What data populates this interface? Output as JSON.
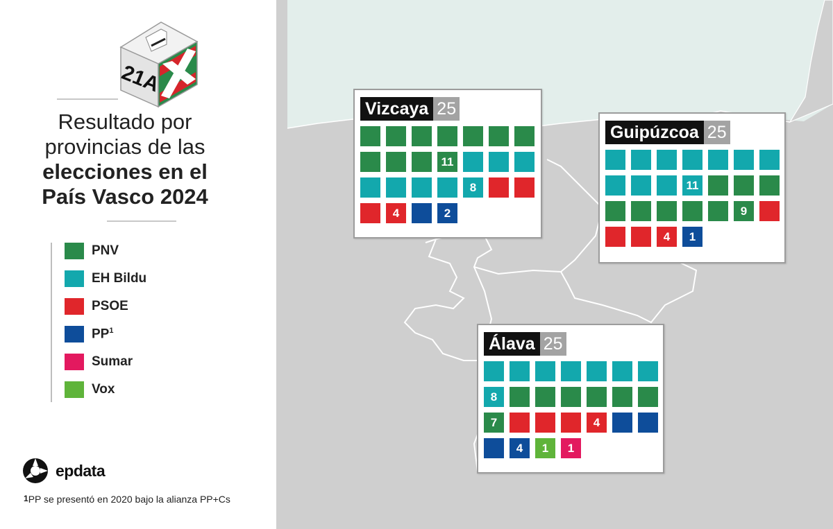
{
  "logo": {
    "text": "21A"
  },
  "title": {
    "light_lines": [
      "Resultado por",
      "provincias de las"
    ],
    "bold_lines": [
      "elecciones en el",
      "País Vasco 2024"
    ]
  },
  "colors": {
    "PNV": "#2a8a4a",
    "EH Bildu": "#13a8ad",
    "PSOE": "#e0262b",
    "PP": "#0e4d9a",
    "Sumar": "#e3195f",
    "Vox": "#5fb43a",
    "sea": "#e3eeeb",
    "land": "#cfcfcf"
  },
  "legend": [
    {
      "party": "PNV",
      "label": "PNV"
    },
    {
      "party": "EH Bildu",
      "label": "EH Bildu"
    },
    {
      "party": "PSOE",
      "label": "PSOE"
    },
    {
      "party": "PP",
      "label": "PP",
      "sup": "1"
    },
    {
      "party": "Sumar",
      "label": "Sumar"
    },
    {
      "party": "Vox",
      "label": "Vox"
    }
  ],
  "brand": {
    "name": "epdata"
  },
  "footnote": {
    "mark": "1",
    "text": "PP se presentó en 2020 bajo la alianza PP+Cs"
  },
  "provinces": [
    {
      "name": "Vizcaya",
      "total": "25",
      "seats": [
        {
          "party": "PNV",
          "count": 11
        },
        {
          "party": "EH Bildu",
          "count": 8
        },
        {
          "party": "PSOE",
          "count": 4
        },
        {
          "party": "PP",
          "count": 2
        }
      ]
    },
    {
      "name": "Guipúzcoa",
      "total": "25",
      "seats": [
        {
          "party": "EH Bildu",
          "count": 11
        },
        {
          "party": "PNV",
          "count": 9
        },
        {
          "party": "PSOE",
          "count": 4
        },
        {
          "party": "PP",
          "count": 1
        }
      ]
    },
    {
      "name": "Álava",
      "total": "25",
      "seats": [
        {
          "party": "EH Bildu",
          "count": 8
        },
        {
          "party": "PNV",
          "count": 7
        },
        {
          "party": "PSOE",
          "count": 4
        },
        {
          "party": "PP",
          "count": 4
        },
        {
          "party": "Vox",
          "count": 1
        },
        {
          "party": "Sumar",
          "count": 1
        }
      ]
    }
  ]
}
